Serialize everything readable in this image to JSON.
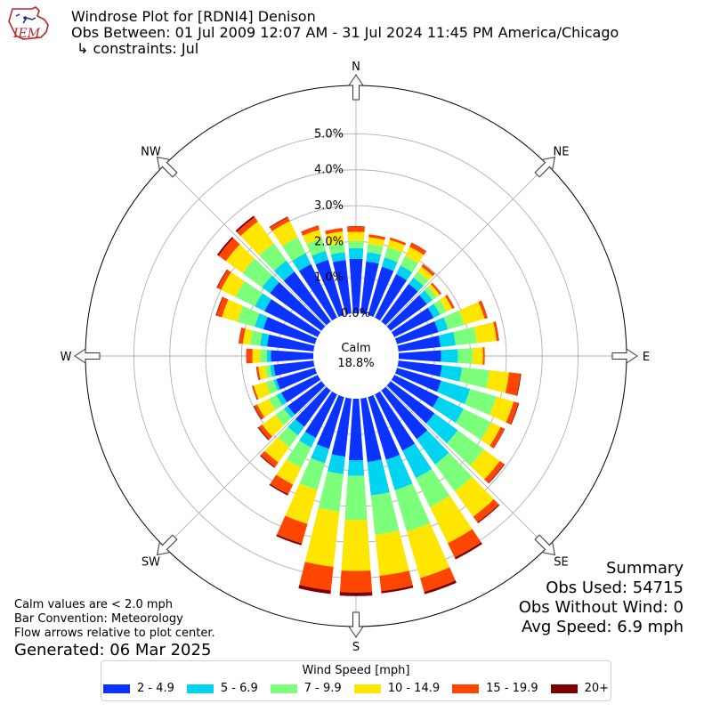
{
  "header": {
    "title": "Windrose Plot for [RDNI4] Denison",
    "subtitle": "Obs Between: 01 Jul 2009 12:07 AM - 31 Jul 2024 11:45 PM America/Chicago",
    "constraints": "↳ constraints: Jul"
  },
  "logo": {
    "text": "IEM"
  },
  "summary": {
    "heading": "Summary",
    "obs_used": "Obs Used: 54715",
    "obs_without_wind": "Obs Without Wind: 0",
    "avg_speed": "Avg Speed: 6.9 mph"
  },
  "notes": {
    "calm_note": "Calm values are < 2.0 mph",
    "bar_convention": "Bar Convention: Meteorology",
    "flow_arrows": "Flow arrows relative to plot center.",
    "generated": "Generated: 06 Mar 2025"
  },
  "chart_data": {
    "type": "windrose",
    "title": "Windrose Plot for [RDNI4] Denison",
    "calm_label": "Calm",
    "calm_value": "18.8%",
    "radial_tick_labels": [
      "0.0%",
      "1.0%",
      "2.0%",
      "3.0%",
      "4.0%",
      "5.0%"
    ],
    "radial_ticks": [
      0,
      1,
      2,
      3,
      4,
      5
    ],
    "rmax": 6.35,
    "compass_labels": [
      {
        "dir": 0,
        "label": "N"
      },
      {
        "dir": 45,
        "label": "NE"
      },
      {
        "dir": 90,
        "label": "E"
      },
      {
        "dir": 135,
        "label": "SE"
      },
      {
        "dir": 180,
        "label": "S"
      },
      {
        "dir": 225,
        "label": "SW"
      },
      {
        "dir": 270,
        "label": "W"
      },
      {
        "dir": 315,
        "label": "NW"
      }
    ],
    "legend_title": "Wind Speed [mph]",
    "bins": [
      {
        "label": "2 - 4.9",
        "color": "#0b33ff"
      },
      {
        "label": "5 - 6.9",
        "color": "#00d4f0"
      },
      {
        "label": "7 - 9.9",
        "color": "#7cff7a"
      },
      {
        "label": "10 - 14.9",
        "color": "#ffe600"
      },
      {
        "label": "15 - 19.9",
        "color": "#ff4600"
      },
      {
        "label": "20+",
        "color": "#7f0000"
      }
    ],
    "directions": [
      0,
      10,
      20,
      30,
      40,
      50,
      60,
      70,
      80,
      90,
      100,
      110,
      120,
      130,
      140,
      150,
      160,
      170,
      180,
      190,
      200,
      210,
      220,
      230,
      240,
      250,
      260,
      270,
      280,
      290,
      300,
      310,
      320,
      330,
      340,
      350
    ],
    "cumulative": [
      [
        1.52,
        1.82,
        2.02,
        2.27,
        2.42,
        2.43
      ],
      [
        1.46,
        1.72,
        1.95,
        2.14,
        2.22,
        2.22
      ],
      [
        1.4,
        1.67,
        1.97,
        2.18,
        2.25,
        2.25
      ],
      [
        1.35,
        1.62,
        1.92,
        2.2,
        2.32,
        2.33
      ],
      [
        1.3,
        1.52,
        1.72,
        1.9,
        1.97,
        1.98
      ],
      [
        1.26,
        1.45,
        1.6,
        1.7,
        1.76,
        1.76
      ],
      [
        1.22,
        1.42,
        1.62,
        1.8,
        1.87,
        1.87
      ],
      [
        1.2,
        1.48,
        1.95,
        2.54,
        2.62,
        2.63
      ],
      [
        1.18,
        1.6,
        2.19,
        2.75,
        2.81,
        2.82
      ],
      [
        1.18,
        1.65,
        2.06,
        2.35,
        2.4,
        2.4
      ],
      [
        1.22,
        1.78,
        2.55,
        3.1,
        3.42,
        3.44
      ],
      [
        1.28,
        2.12,
        2.88,
        3.38,
        3.52,
        3.54
      ],
      [
        1.38,
        2.15,
        3.0,
        3.3,
        3.42,
        3.43
      ],
      [
        1.52,
        2.32,
        3.22,
        3.77,
        3.92,
        3.94
      ],
      [
        1.68,
        2.55,
        3.48,
        4.35,
        4.55,
        4.58
      ],
      [
        1.75,
        2.6,
        3.5,
        4.62,
        5.06,
        5.12
      ],
      [
        1.82,
        2.7,
        3.9,
        5.25,
        5.65,
        5.72
      ],
      [
        1.78,
        2.72,
        3.82,
        4.97,
        5.4,
        5.46
      ],
      [
        1.72,
        2.15,
        3.38,
        4.8,
        5.4,
        5.5
      ],
      [
        1.63,
        2.12,
        3.17,
        4.72,
        5.38,
        5.48
      ],
      [
        1.5,
        1.92,
        2.7,
        3.68,
        4.25,
        4.3
      ],
      [
        1.35,
        1.65,
        2.28,
        2.8,
        3.1,
        3.14
      ],
      [
        1.25,
        1.55,
        1.95,
        2.48,
        2.64,
        2.67
      ],
      [
        1.17,
        1.3,
        1.6,
        2.05,
        2.17,
        2.2
      ],
      [
        1.13,
        1.28,
        1.52,
        1.88,
        1.97,
        1.99
      ],
      [
        1.12,
        1.2,
        1.42,
        1.78,
        1.82,
        1.83
      ],
      [
        1.12,
        1.22,
        1.35,
        1.55,
        1.6,
        1.61
      ],
      [
        1.18,
        1.3,
        1.48,
        1.7,
        1.86,
        1.87
      ],
      [
        1.3,
        1.5,
        1.78,
        1.98,
        2.09,
        2.1
      ],
      [
        1.5,
        1.75,
        2.25,
        2.7,
        2.86,
        2.88
      ],
      [
        1.65,
        1.95,
        2.55,
        3.0,
        3.12,
        3.14
      ],
      [
        1.78,
        2.05,
        2.73,
        3.3,
        3.55,
        3.6
      ],
      [
        1.72,
        2.1,
        2.7,
        3.45,
        3.6,
        3.65
      ],
      [
        1.66,
        2.0,
        2.5,
        3.0,
        3.12,
        3.14
      ],
      [
        1.6,
        1.86,
        2.22,
        2.48,
        2.6,
        2.6
      ],
      [
        1.5,
        1.72,
        1.98,
        2.3,
        2.4,
        2.4
      ]
    ]
  }
}
